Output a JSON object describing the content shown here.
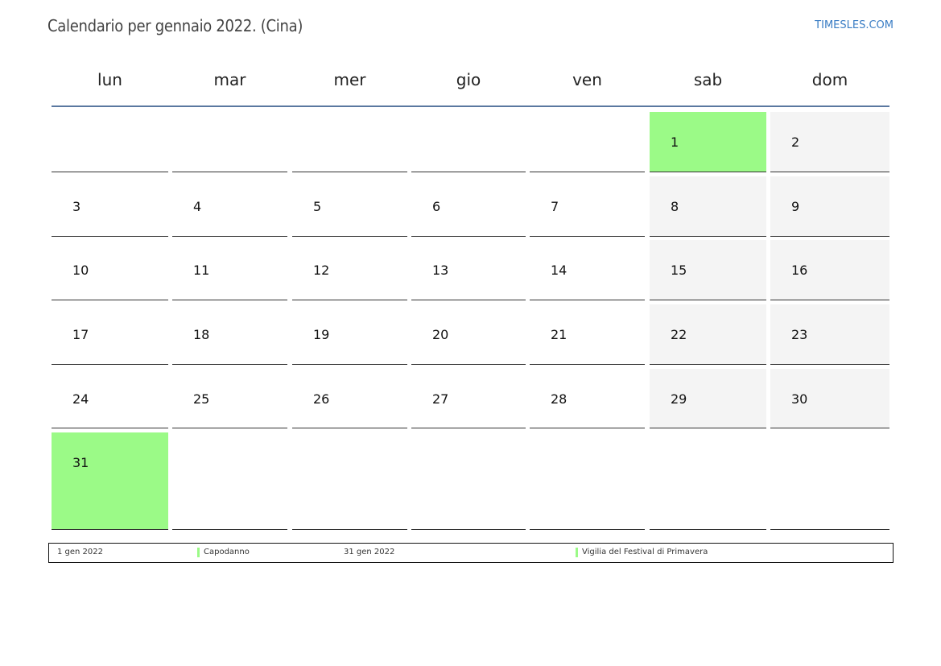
{
  "header": {
    "title": "Calendario per gennaio 2022. (Cina)",
    "brand": "TIMESLES.COM"
  },
  "weekdays": [
    "lun",
    "mar",
    "mer",
    "gio",
    "ven",
    "sab",
    "dom"
  ],
  "weeks": [
    [
      null,
      null,
      null,
      null,
      null,
      1,
      2
    ],
    [
      3,
      4,
      5,
      6,
      7,
      8,
      9
    ],
    [
      10,
      11,
      12,
      13,
      14,
      15,
      16
    ],
    [
      17,
      18,
      19,
      20,
      21,
      22,
      23
    ],
    [
      24,
      25,
      26,
      27,
      28,
      29,
      30
    ],
    [
      31,
      null,
      null,
      null,
      null,
      null,
      null
    ]
  ],
  "holiday_days": [
    1,
    31
  ],
  "colors": {
    "holiday": "#9bfa87",
    "weekend": "#f4f4f4",
    "header_rule": "#5a78a0"
  },
  "legend": [
    {
      "date": "1 gen 2022",
      "name": "Capodanno"
    },
    {
      "date": "31 gen 2022",
      "name": "Vigilia del Festival di Primavera"
    }
  ]
}
